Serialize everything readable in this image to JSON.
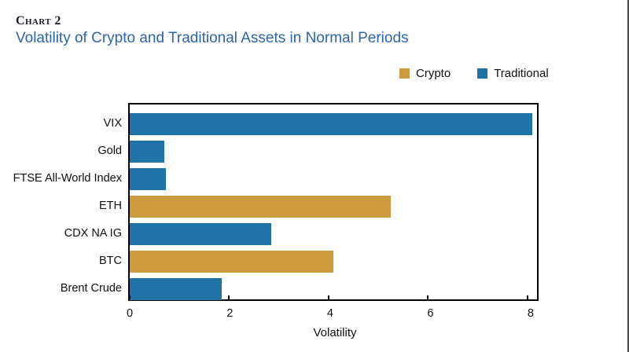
{
  "header": {
    "chart_label": "Chart 2",
    "title": "Volatility of Crypto and Traditional Assets in Normal Periods"
  },
  "legend": {
    "position": "top-right",
    "items": [
      {
        "label": "Crypto",
        "color": "#ce9a3e"
      },
      {
        "label": "Traditional",
        "color": "#1f73a7"
      }
    ]
  },
  "chart_data": {
    "type": "bar",
    "orientation": "horizontal",
    "title": "Volatility of Crypto and Traditional Assets in Normal Periods",
    "categories": [
      "VIX",
      "Gold",
      "FTSE All-World Index",
      "ETH",
      "CDX NA IG",
      "BTC",
      "Brent Crude"
    ],
    "values": [
      8.1,
      0.7,
      0.72,
      5.25,
      2.85,
      4.1,
      1.85
    ],
    "groups": [
      "Traditional",
      "Traditional",
      "Traditional",
      "Crypto",
      "Traditional",
      "Crypto",
      "Traditional"
    ],
    "colors": {
      "Crypto": "#ce9a3e",
      "Traditional": "#1f73a7"
    },
    "xlabel": "Volatility",
    "ylabel": "",
    "xticks": [
      0,
      2,
      4,
      6,
      8
    ],
    "xlim": [
      0,
      8.19
    ],
    "grid": false,
    "legend_position": "top-right",
    "frame": "box",
    "tick_direction": "in"
  }
}
